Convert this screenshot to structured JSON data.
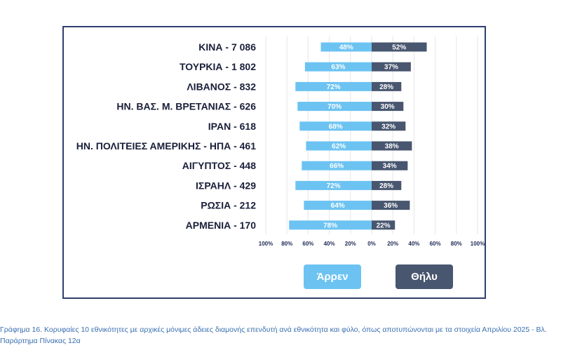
{
  "chart_data": {
    "type": "bar",
    "categories": [
      "ΚΙΝΑ - 7 086",
      "ΤΟΥΡΚΙΑ - 1 802",
      "ΛΙΒΑΝΟΣ - 832",
      "ΗΝ. ΒΑΣ. Μ. ΒΡΕΤΑΝΙΑΣ - 626",
      "ΙΡΑΝ - 618",
      "ΗΝ. ΠΟΛΙΤΕΙΕΣ ΑΜΕΡΙΚΗΣ - ΗΠΑ - 461",
      "ΑΙΓΥΠΤΟΣ - 448",
      "ΙΣΡΑΗΛ - 429",
      "ΡΩΣΙΑ - 212",
      "ΑΡΜΕΝΙΑ - 170"
    ],
    "series": [
      {
        "name": "Άρρεν",
        "values": [
          48,
          63,
          72,
          70,
          68,
          62,
          66,
          72,
          64,
          78
        ]
      },
      {
        "name": "Θήλυ",
        "values": [
          52,
          37,
          28,
          30,
          32,
          38,
          34,
          28,
          36,
          22
        ]
      }
    ],
    "x_tick_labels": [
      "100%",
      "80%",
      "60%",
      "40%",
      "20%",
      "0%",
      "20%",
      "40%",
      "60%",
      "80%",
      "100%"
    ],
    "xlim": [
      -100,
      100
    ],
    "grid": true,
    "legend_position": "bottom",
    "colors": {
      "male": "#6cc3f2",
      "female": "#48566f",
      "frame": "#2f3f6e",
      "caption": "#3a6fb0"
    },
    "caption": "Γράφημα 16. Κορυφαίες 10 εθνικότητες με αρχικές μόνιμες άδειες διαμονής επενδυτή ανά εθνικότητα και φύλο, όπως αποτυπώνονται με τα στοιχεία Απριλίου 2025 - Βλ. Παράρτημα Πίνακας 12α"
  }
}
